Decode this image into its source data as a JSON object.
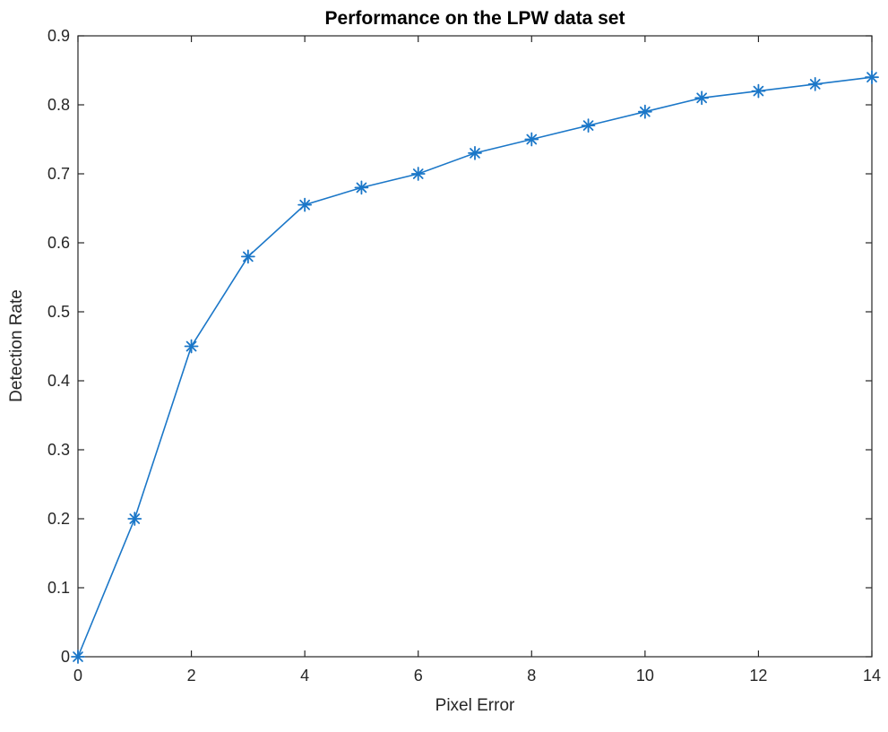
{
  "figure": {
    "title": "Performance on the LPW data set",
    "xlabel": "Pixel Error",
    "ylabel": "Detection Rate"
  },
  "chart_data": {
    "type": "line",
    "title": "Performance on the LPW data set",
    "xlabel": "Pixel Error",
    "ylabel": "Detection Rate",
    "series": [
      {
        "name": "detection-rate-curve",
        "x": [
          0,
          1,
          2,
          3,
          4,
          5,
          6,
          7,
          8,
          9,
          10,
          11,
          12,
          13,
          14
        ],
        "y": [
          0,
          0.2,
          0.45,
          0.58,
          0.655,
          0.68,
          0.7,
          0.73,
          0.75,
          0.77,
          0.79,
          0.81,
          0.82,
          0.83,
          0.84
        ]
      }
    ],
    "xlim": [
      0,
      14
    ],
    "ylim": [
      0,
      0.9
    ],
    "xticks": [
      0,
      2,
      4,
      6,
      8,
      10,
      12,
      14
    ],
    "yticks": [
      0,
      0.1,
      0.2,
      0.3,
      0.4,
      0.5,
      0.6,
      0.7,
      0.8,
      0.9
    ],
    "marker": "asterisk",
    "grid": false,
    "legend_position": "none",
    "line_color": "#1b77c8",
    "axis_color": "#262626",
    "title_color": "#000000",
    "background_color": "#ffffff"
  }
}
